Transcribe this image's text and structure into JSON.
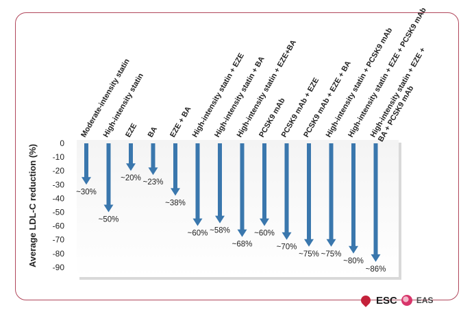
{
  "logos": {
    "esc": "ESC",
    "eas": "EAS"
  },
  "chart_data": {
    "type": "bar",
    "orientation": "downward-arrows",
    "ylabel": "Average LDL-C reduction (%)",
    "ylim": [
      -90,
      0
    ],
    "yticks": [
      0,
      -10,
      -20,
      -30,
      -40,
      -50,
      -60,
      -70,
      -80,
      -90
    ],
    "grid": false,
    "categories": [
      "Moderate-intensity statin",
      "High-intensity statin",
      "EZE",
      "BA",
      "EZE + BA",
      "High-intensity statin + EZE",
      "High-intensity statin + BA",
      "High-intensity statin + EZE+BA",
      "PCSK9 mAb",
      "PCSK9 mAb + EZE",
      "PCSK9 mAb + EZE + BA",
      "High-intensity statin + PCSK9 mAb",
      "High-intensity statin + EZE + PCSK9 mAb",
      [
        "High-intensity statin + EZE +",
        "BA + PCSK9 mAb"
      ]
    ],
    "values": [
      -30,
      -50,
      -20,
      -23,
      -38,
      -60,
      -58,
      -68,
      -60,
      -70,
      -75,
      -75,
      -80,
      -86
    ],
    "data_labels": [
      "~30%",
      "~50%",
      "~20%",
      "~23%",
      "~38%",
      "~60%",
      "~58%",
      "~68%",
      "~60%",
      "~70%",
      "~75%",
      "~75%",
      "~80%",
      "~86%"
    ],
    "arrow_color": "#3a77ad"
  }
}
